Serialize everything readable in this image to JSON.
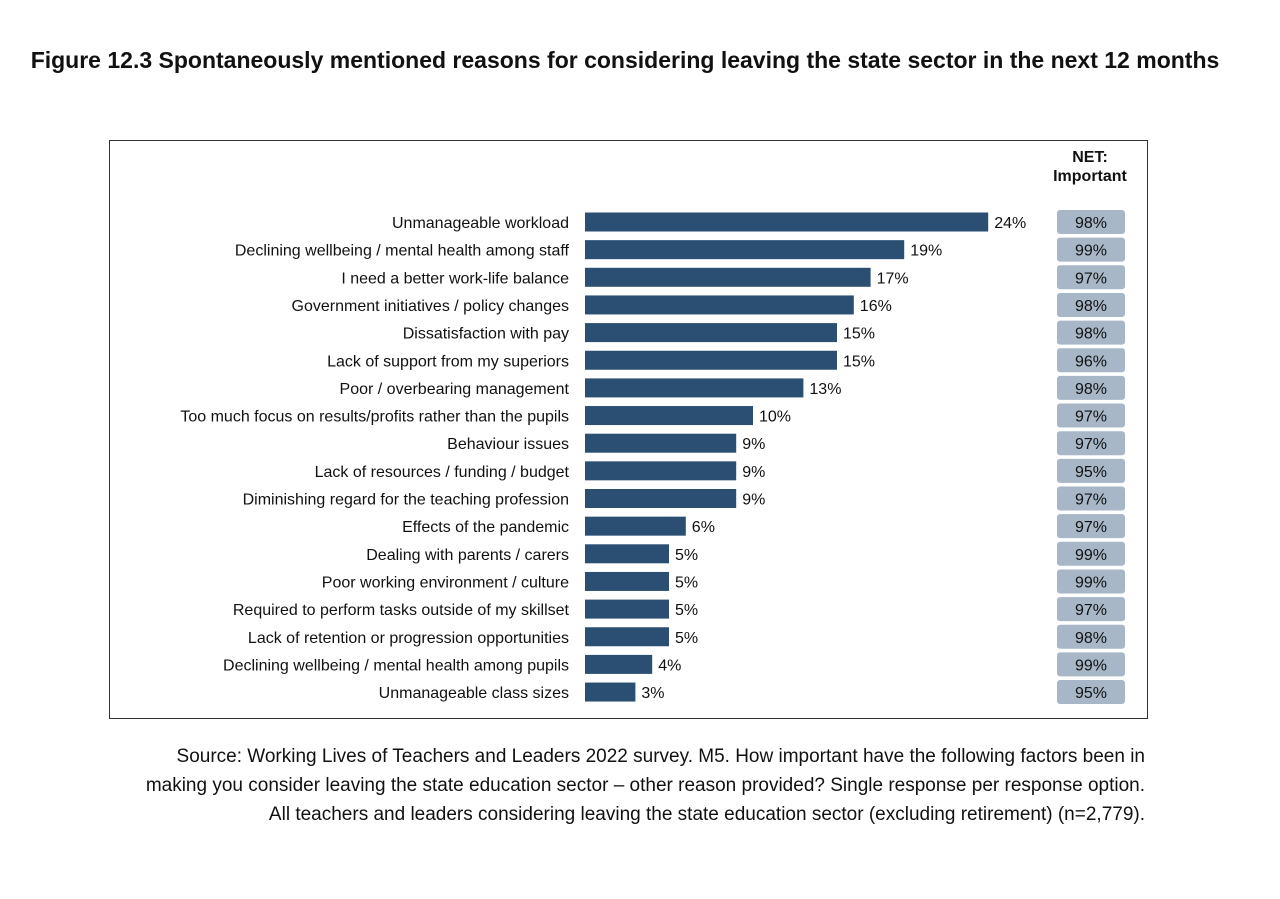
{
  "chart_data": {
    "type": "bar",
    "orientation": "horizontal",
    "title": "Figure 12.3 Spontaneously mentioned reasons for considering leaving the state sector in the next 12 months",
    "net_header": [
      "NET:",
      "Important"
    ],
    "categories": [
      "Unmanageable workload",
      "Declining wellbeing / mental health among staff",
      "I need a better work-life balance",
      "Government initiatives / policy changes",
      "Dissatisfaction with pay",
      "Lack of support from my superiors",
      "Poor / overbearing management",
      "Too much focus on results/profits rather than the pupils",
      "Behaviour issues",
      "Lack of resources / funding / budget",
      "Diminishing regard for the teaching profession",
      "Effects of the pandemic",
      "Dealing with parents / carers",
      "Poor working environment / culture",
      "Required to perform tasks outside of my skillset",
      "Lack of retention or progression opportunities",
      "Declining wellbeing / mental health among pupils",
      "Unmanageable class sizes"
    ],
    "values": [
      24,
      19,
      17,
      16,
      15,
      15,
      13,
      10,
      9,
      9,
      9,
      6,
      5,
      5,
      5,
      5,
      4,
      3
    ],
    "net_important": [
      98,
      99,
      97,
      98,
      98,
      96,
      98,
      97,
      97,
      95,
      97,
      97,
      99,
      99,
      97,
      98,
      99,
      95
    ],
    "unit": "%",
    "bar_color": "#2b4f73",
    "badge_color": "#a7b7c7",
    "source": "Source: Working Lives of Teachers and Leaders 2022 survey. M5. How important have the following factors been in making you consider leaving the state education sector – other reason provided? Single response per response option. All teachers and leaders considering leaving the state education sector (excluding retirement) (n=2,779)."
  }
}
